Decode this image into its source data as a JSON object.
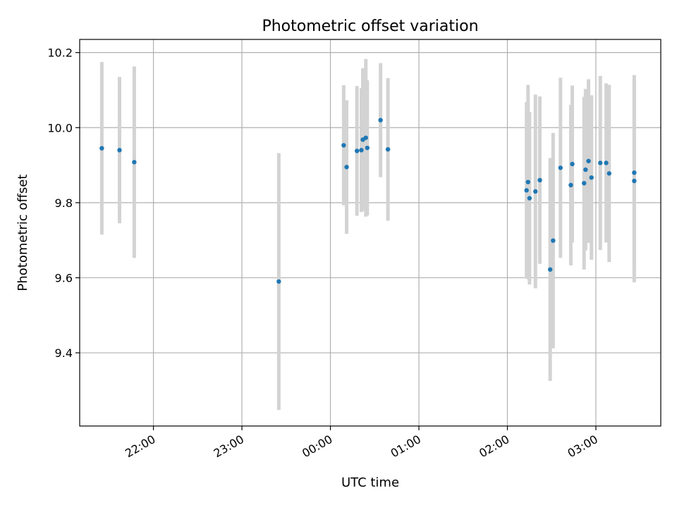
{
  "chart_data": {
    "type": "scatter",
    "title": "Photometric offset variation",
    "xlabel": "UTC time",
    "ylabel": "Photometric offset",
    "x_axis_type": "time",
    "x_ticks": [
      "22:00",
      "23:00",
      "00:00",
      "01:00",
      "02:00",
      "03:00"
    ],
    "y_ticks": [
      "9.4",
      "9.6",
      "9.8",
      "10.0",
      "10.2"
    ],
    "xlim": [
      "21:10",
      "03:44"
    ],
    "ylim": [
      9.205,
      10.235
    ],
    "grid": true,
    "point_color": "#1f77b4",
    "errorbar_color": "#d3d3d3",
    "series": [
      {
        "points": [
          {
            "x": "21:25",
            "y": 9.945,
            "low": 9.715,
            "high": 10.175
          },
          {
            "x": "21:37",
            "y": 9.94,
            "low": 9.745,
            "high": 10.135
          },
          {
            "x": "21:47",
            "y": 9.908,
            "low": 9.653,
            "high": 10.163
          },
          {
            "x": "23:25",
            "y": 9.59,
            "low": 9.248,
            "high": 9.932
          },
          {
            "x": "00:09",
            "y": 9.953,
            "low": 9.793,
            "high": 10.113
          },
          {
            "x": "00:11",
            "y": 9.895,
            "low": 9.717,
            "high": 10.073
          },
          {
            "x": "00:18",
            "y": 9.938,
            "low": 9.765,
            "high": 10.111
          },
          {
            "x": "00:21",
            "y": 9.94,
            "low": 9.775,
            "high": 10.105
          },
          {
            "x": "00:22",
            "y": 9.968,
            "low": 9.778,
            "high": 10.158
          },
          {
            "x": "00:24",
            "y": 9.973,
            "low": 9.763,
            "high": 10.183
          },
          {
            "x": "00:25",
            "y": 9.946,
            "low": 9.766,
            "high": 10.126
          },
          {
            "x": "00:34",
            "y": 10.02,
            "low": 9.868,
            "high": 10.172
          },
          {
            "x": "00:39",
            "y": 9.942,
            "low": 9.752,
            "high": 10.132
          },
          {
            "x": "02:13",
            "y": 9.833,
            "low": 9.598,
            "high": 10.068
          },
          {
            "x": "02:14",
            "y": 9.855,
            "low": 9.596,
            "high": 10.114
          },
          {
            "x": "02:15",
            "y": 9.812,
            "low": 9.582,
            "high": 10.042
          },
          {
            "x": "02:19",
            "y": 9.83,
            "low": 9.572,
            "high": 10.088
          },
          {
            "x": "02:22",
            "y": 9.86,
            "low": 9.637,
            "high": 10.083
          },
          {
            "x": "02:29",
            "y": 9.622,
            "low": 9.325,
            "high": 9.919
          },
          {
            "x": "02:31",
            "y": 9.699,
            "low": 9.412,
            "high": 9.986
          },
          {
            "x": "02:36",
            "y": 9.893,
            "low": 9.653,
            "high": 10.133
          },
          {
            "x": "02:43",
            "y": 9.847,
            "low": 9.633,
            "high": 10.061
          },
          {
            "x": "02:44",
            "y": 9.903,
            "low": 9.694,
            "high": 10.112
          },
          {
            "x": "02:52",
            "y": 9.852,
            "low": 9.622,
            "high": 10.082
          },
          {
            "x": "02:53",
            "y": 9.888,
            "low": 9.673,
            "high": 10.103
          },
          {
            "x": "02:55",
            "y": 9.911,
            "low": 9.693,
            "high": 10.129
          },
          {
            "x": "02:57",
            "y": 9.867,
            "low": 9.648,
            "high": 10.086
          },
          {
            "x": "03:03",
            "y": 9.906,
            "low": 9.674,
            "high": 10.138
          },
          {
            "x": "03:07",
            "y": 9.906,
            "low": 9.694,
            "high": 10.118
          },
          {
            "x": "03:09",
            "y": 9.878,
            "low": 9.642,
            "high": 10.114
          },
          {
            "x": "03:26",
            "y": 9.88,
            "low": 9.62,
            "high": 10.14
          },
          {
            "x": "03:26",
            "y": 9.858,
            "low": 9.588,
            "high": 10.128
          }
        ]
      }
    ]
  }
}
